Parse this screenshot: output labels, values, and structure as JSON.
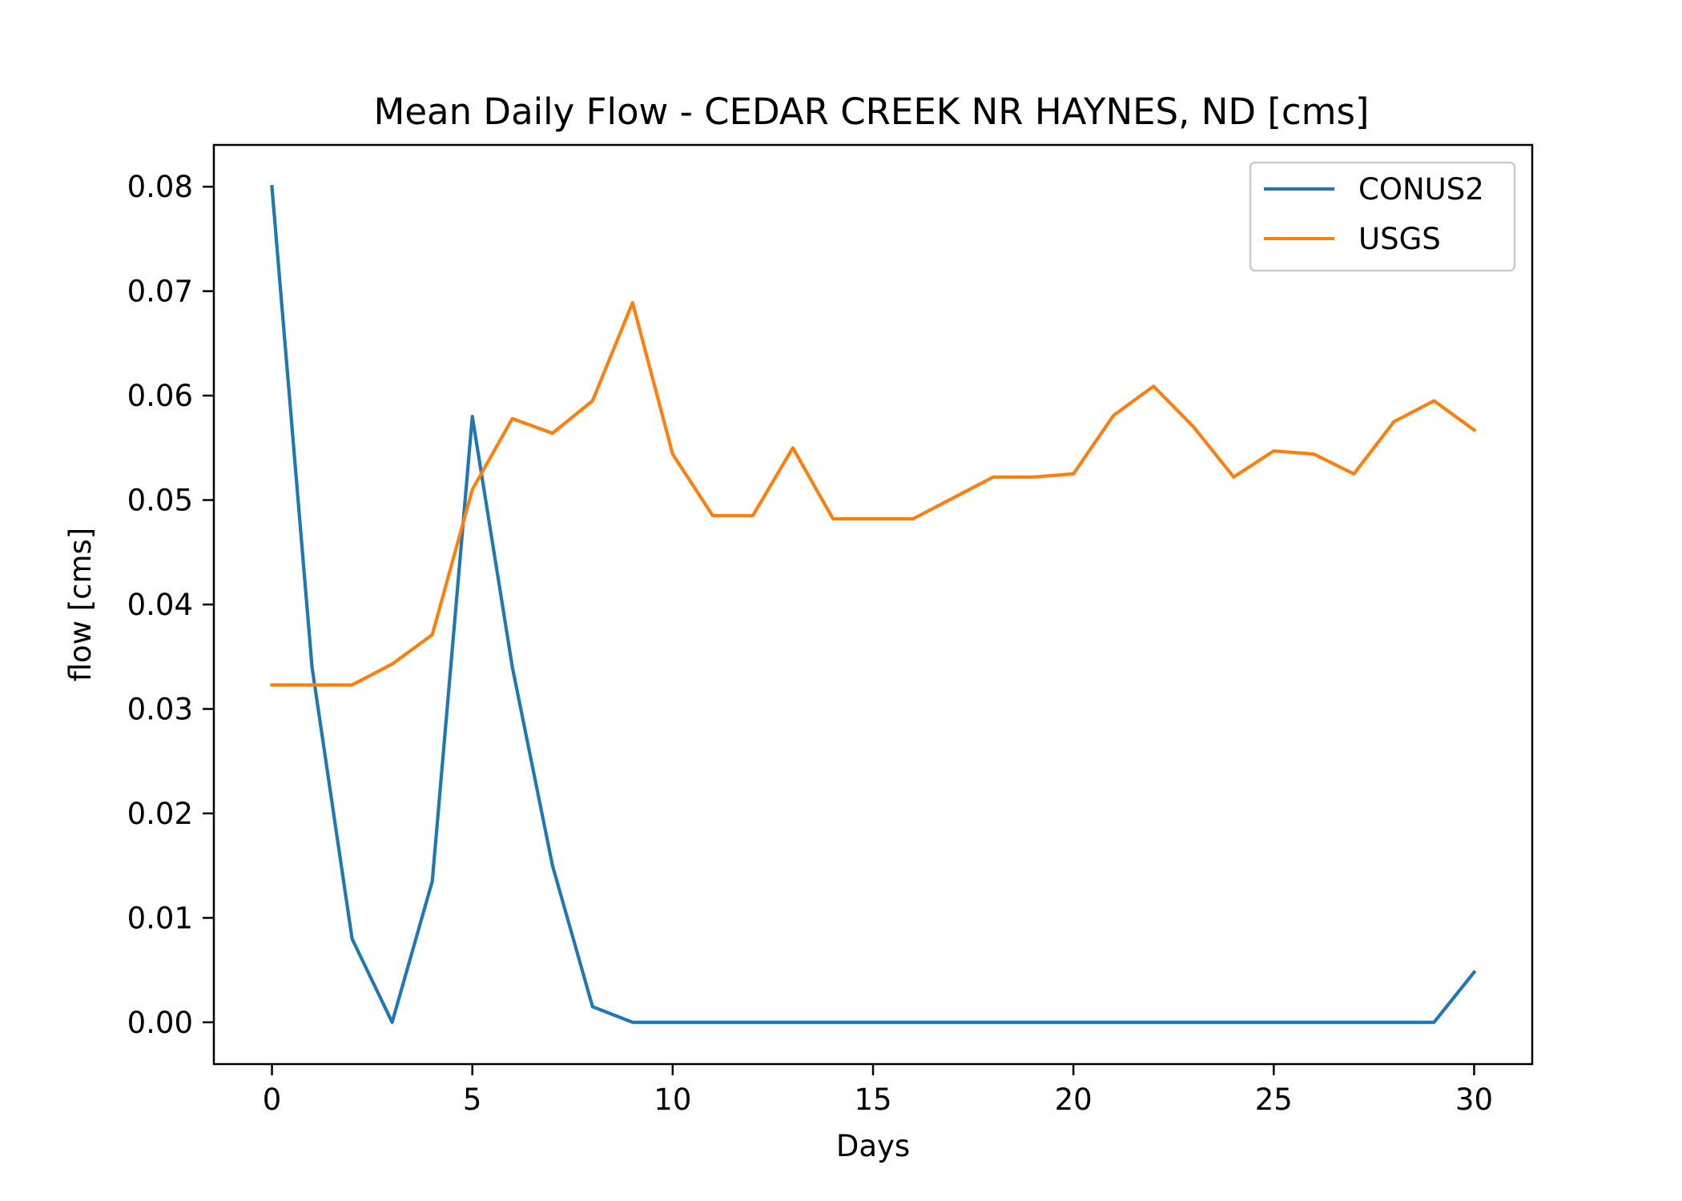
{
  "chart_data": {
    "type": "line",
    "title": "Mean Daily Flow - CEDAR CREEK NR HAYNES, ND [cms]",
    "xlabel": "Days",
    "ylabel": "flow [cms]",
    "xlim": [
      -1.45,
      31.45
    ],
    "ylim": [
      -0.004,
      0.084
    ],
    "xticks": [
      0,
      5,
      10,
      15,
      20,
      25,
      30
    ],
    "xtick_labels": [
      "0",
      "5",
      "10",
      "15",
      "20",
      "25",
      "30"
    ],
    "yticks": [
      0.0,
      0.01,
      0.02,
      0.03,
      0.04,
      0.05,
      0.06,
      0.07,
      0.08
    ],
    "ytick_labels": [
      "0.00",
      "0.01",
      "0.02",
      "0.03",
      "0.04",
      "0.05",
      "0.06",
      "0.07",
      "0.08"
    ],
    "grid": false,
    "legend_position": "top-right",
    "x": [
      0,
      1,
      2,
      3,
      4,
      5,
      6,
      7,
      8,
      9,
      10,
      11,
      12,
      13,
      14,
      15,
      16,
      17,
      18,
      19,
      20,
      21,
      22,
      23,
      24,
      25,
      26,
      27,
      28,
      29,
      30
    ],
    "series": [
      {
        "name": "CONUS2",
        "color": "#1f77b4",
        "values": [
          0.08,
          0.034,
          0.008,
          0.0,
          0.0135,
          0.058,
          0.034,
          0.015,
          0.0015,
          0.0,
          0.0,
          0.0,
          0.0,
          0.0,
          0.0,
          0.0,
          0.0,
          0.0,
          0.0,
          0.0,
          0.0,
          0.0,
          0.0,
          0.0,
          0.0,
          0.0,
          0.0,
          0.0,
          0.0,
          0.0,
          0.0048
        ]
      },
      {
        "name": "USGS",
        "color": "#ff7f0e",
        "values": [
          0.0323,
          0.0323,
          0.0323,
          0.0343,
          0.0371,
          0.051,
          0.0578,
          0.0564,
          0.0595,
          0.0689,
          0.0544,
          0.0485,
          0.0485,
          0.055,
          0.0482,
          0.0482,
          0.0482,
          0.0502,
          0.0522,
          0.0522,
          0.0525,
          0.0581,
          0.0609,
          0.057,
          0.0522,
          0.0547,
          0.0544,
          0.0525,
          0.0575,
          0.0595,
          0.0567
        ]
      }
    ]
  }
}
